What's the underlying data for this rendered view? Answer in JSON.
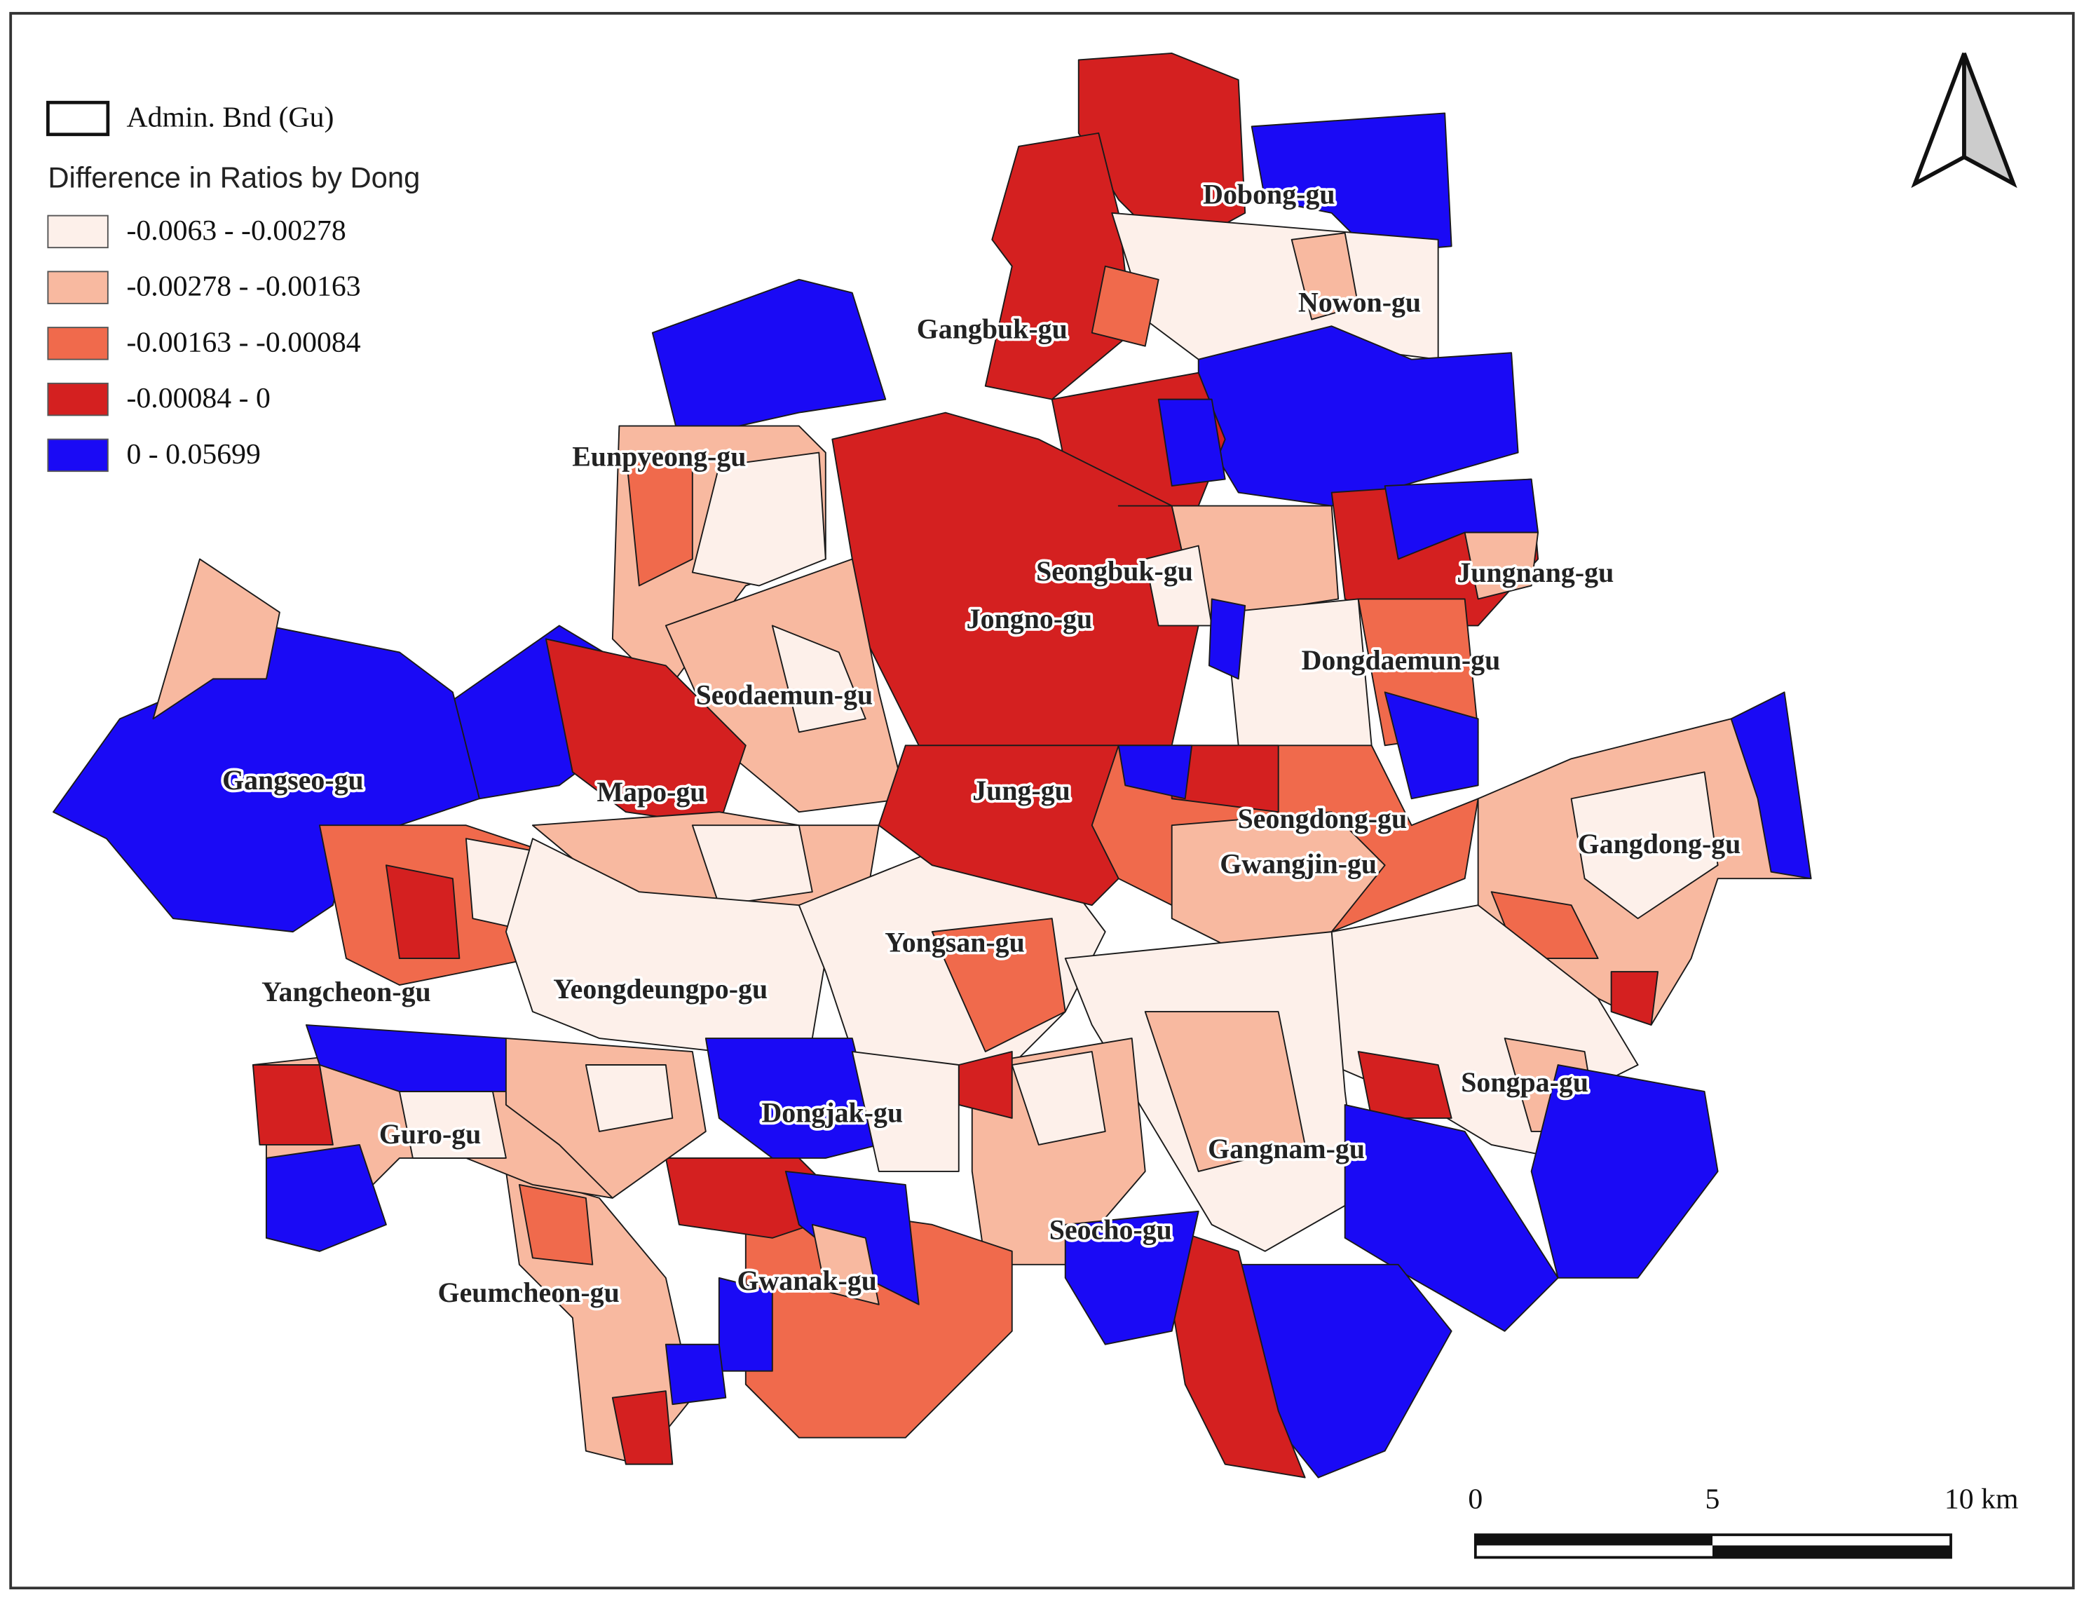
{
  "legend": {
    "boundary": "Admin. Bnd (Gu)",
    "title": "Difference in Ratios by Dong",
    "classes": [
      {
        "label": "-0.0063 - -0.00278",
        "color": "#fdf0ea"
      },
      {
        "label": "-0.00278 - -0.00163",
        "color": "#f8b9a0"
      },
      {
        "label": "-0.00163 - -0.00084",
        "color": "#f06a4c"
      },
      {
        "label": "-0.00084 - 0",
        "color": "#d42020"
      },
      {
        "label": "0 - 0.05699",
        "color": "#1a0af5"
      }
    ]
  },
  "districts": [
    {
      "label": "Dobong-gu"
    },
    {
      "label": "Nowon-gu"
    },
    {
      "label": "Gangbuk-gu"
    },
    {
      "label": "Eunpyeong-gu"
    },
    {
      "label": "Seongbuk-gu"
    },
    {
      "label": "Jungnang-gu"
    },
    {
      "label": "Jongno-gu"
    },
    {
      "label": "Dongdaemun-gu"
    },
    {
      "label": "Seodaemun-gu"
    },
    {
      "label": "Gangseo-gu"
    },
    {
      "label": "Mapo-gu"
    },
    {
      "label": "Jung-gu"
    },
    {
      "label": "Seongdong-gu"
    },
    {
      "label": "Gangdong-gu"
    },
    {
      "label": "Gwangjin-gu"
    },
    {
      "label": "Yongsan-gu"
    },
    {
      "label": "Yangcheon-gu"
    },
    {
      "label": "Yeongdeungpo-gu"
    },
    {
      "label": "Songpa-gu"
    },
    {
      "label": "Guro-gu"
    },
    {
      "label": "Dongjak-gu"
    },
    {
      "label": "Gangnam-gu"
    },
    {
      "label": "Seocho-gu"
    },
    {
      "label": "Geumcheon-gu"
    },
    {
      "label": "Gwanak-gu"
    }
  ],
  "scale_bar": {
    "labels": [
      "0",
      "5",
      "10 km"
    ]
  }
}
